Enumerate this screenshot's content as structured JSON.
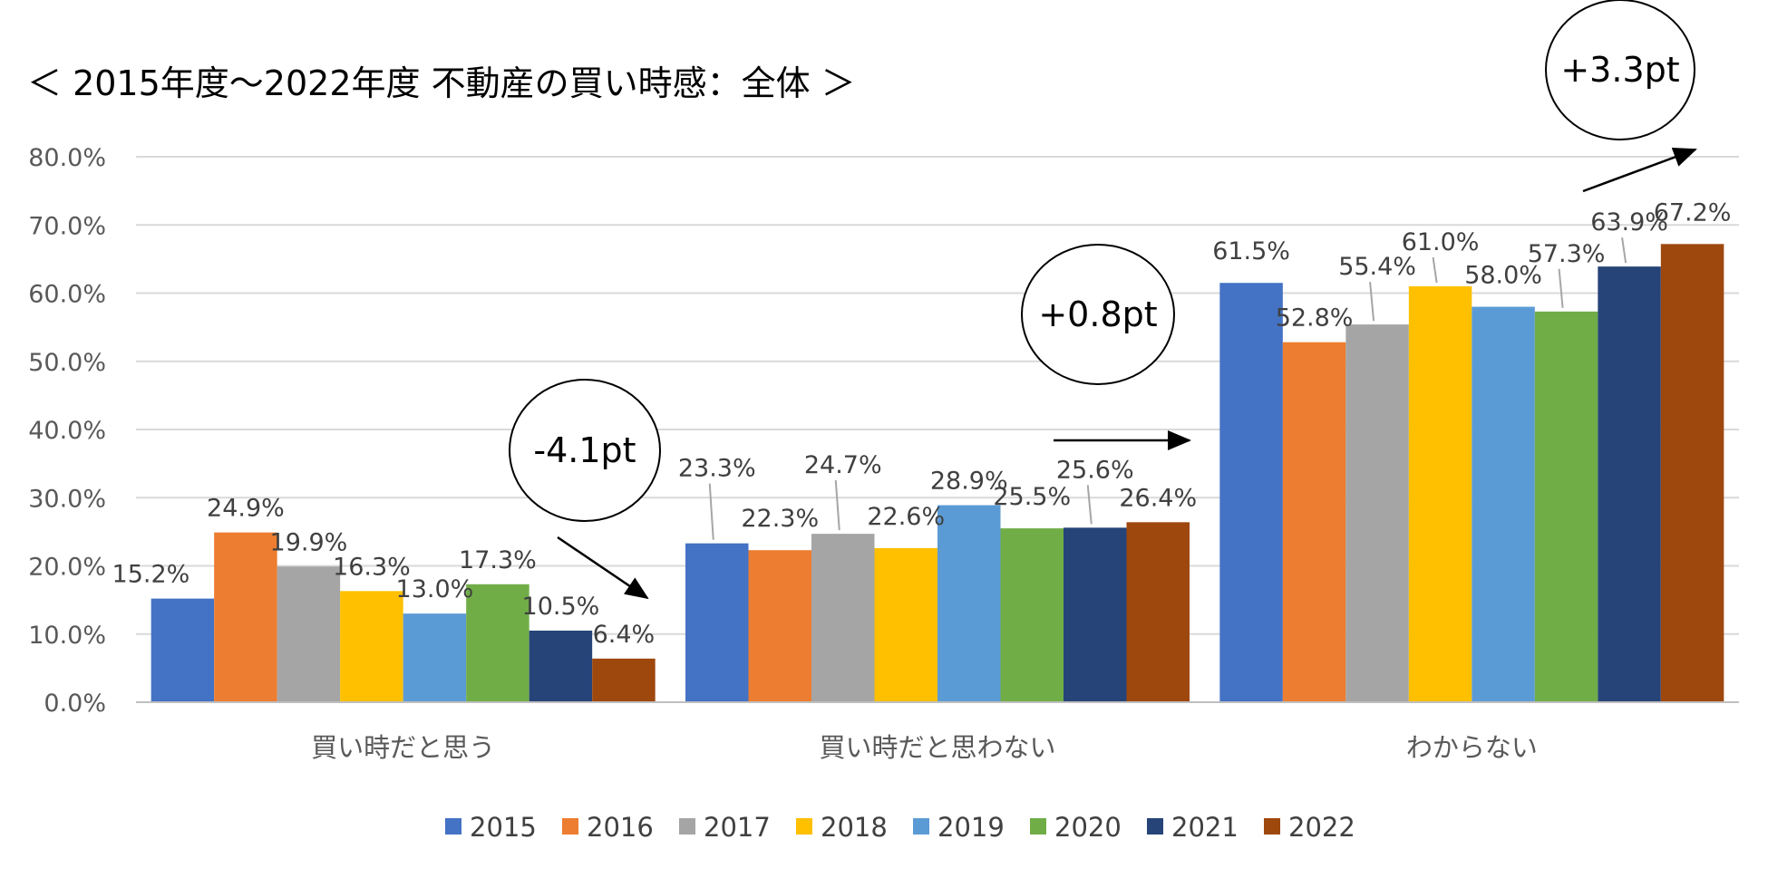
{
  "chart_data": {
    "type": "bar",
    "title": "＜ 2015年度〜2022年度 不動産の買い時感：全体 ＞",
    "xlabel": "",
    "ylabel": "",
    "ylim": [
      0,
      80
    ],
    "y_ticks": [
      "0.0%",
      "10.0%",
      "20.0%",
      "30.0%",
      "40.0%",
      "50.0%",
      "60.0%",
      "70.0%",
      "80.0%"
    ],
    "grid": true,
    "legend_position": "bottom",
    "categories": [
      "買い時だと思う",
      "買い時だと思わない",
      "わからない"
    ],
    "series": [
      {
        "name": "2015",
        "color": "#4472C4",
        "values": [
          15.2,
          23.3,
          61.5
        ],
        "labels": [
          "15.2%",
          "23.3%",
          "61.5%"
        ]
      },
      {
        "name": "2016",
        "color": "#ED7D31",
        "values": [
          24.9,
          22.3,
          52.8
        ],
        "labels": [
          "24.9%",
          "22.3%",
          "52.8%"
        ]
      },
      {
        "name": "2017",
        "color": "#A5A5A5",
        "values": [
          19.9,
          24.7,
          55.4
        ],
        "labels": [
          "19.9%",
          "24.7%",
          "55.4%"
        ]
      },
      {
        "name": "2018",
        "color": "#FFC000",
        "values": [
          16.3,
          22.6,
          61.0
        ],
        "labels": [
          "16.3%",
          "22.6%",
          "61.0%"
        ]
      },
      {
        "name": "2019",
        "color": "#5B9BD5",
        "values": [
          13.0,
          28.9,
          58.0
        ],
        "labels": [
          "13.0%",
          "28.9%",
          "58.0%"
        ]
      },
      {
        "name": "2020",
        "color": "#70AD47",
        "values": [
          17.3,
          25.5,
          57.3
        ],
        "labels": [
          "17.3%",
          "25.5%",
          "57.3%"
        ]
      },
      {
        "name": "2021",
        "color": "#264478",
        "values": [
          10.5,
          25.6,
          63.9
        ],
        "labels": [
          "10.5%",
          "25.6%",
          "63.9%"
        ]
      },
      {
        "name": "2022",
        "color": "#9E480E",
        "values": [
          6.4,
          26.4,
          67.2
        ],
        "labels": [
          "6.4%",
          "26.4%",
          "67.2%"
        ]
      }
    ],
    "annotations": [
      {
        "text": "-4.1pt",
        "category": "買い時だと思う",
        "direction": "down"
      },
      {
        "text": "+0.8pt",
        "category": "買い時だと思わない",
        "direction": "flat"
      },
      {
        "text": "+3.3pt",
        "category": "わからない",
        "direction": "up"
      }
    ]
  }
}
